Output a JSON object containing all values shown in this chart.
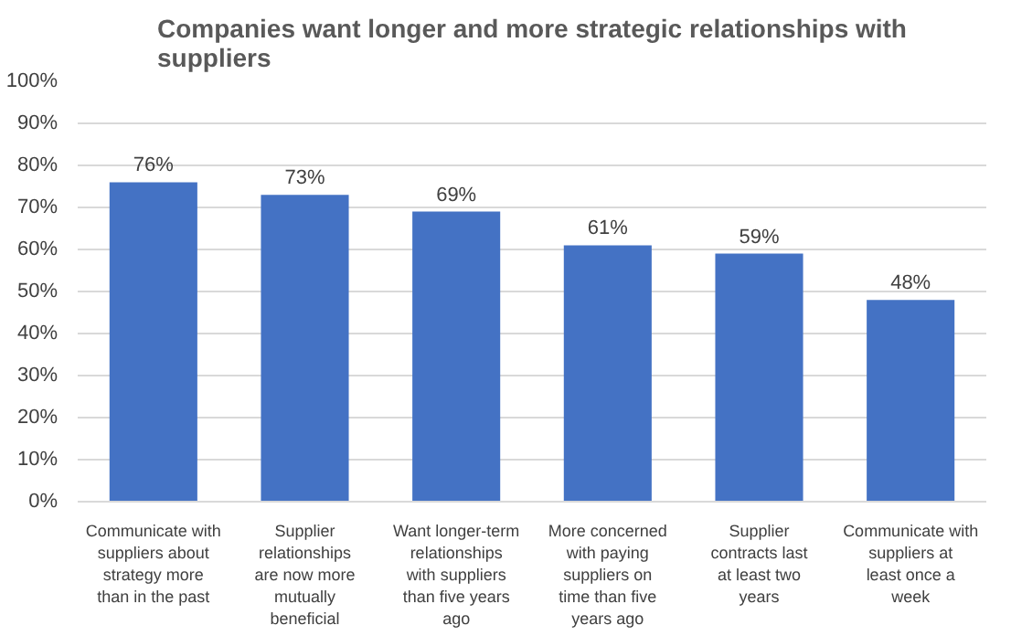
{
  "chart_data": {
    "type": "bar",
    "title": "Companies want longer and more strategic relationships with suppliers",
    "categories": [
      "Communicate with suppliers about strategy more than in the past",
      "Supplier relationships are now more mutually beneficial",
      "Want longer-term relationships with suppliers than five years ago",
      "More concerned with paying suppliers on time than five years ago",
      "Supplier contracts last at least two years",
      "Communicate with suppliers at least once a week"
    ],
    "values": [
      76,
      73,
      69,
      61,
      59,
      48
    ],
    "value_labels": [
      "76%",
      "73%",
      "69%",
      "61%",
      "59%",
      "48%"
    ],
    "color": "#4472c4",
    "ylim": [
      0,
      100
    ],
    "yticks": [
      {
        "value": 0,
        "label": "0%"
      },
      {
        "value": 10,
        "label": "10%"
      },
      {
        "value": 20,
        "label": "20%"
      },
      {
        "value": 30,
        "label": "30%"
      },
      {
        "value": 40,
        "label": "40%"
      },
      {
        "value": 50,
        "label": "50%"
      },
      {
        "value": 60,
        "label": "60%"
      },
      {
        "value": 70,
        "label": "70%"
      },
      {
        "value": 80,
        "label": "80%"
      },
      {
        "value": 90,
        "label": "90%"
      },
      {
        "value": 100,
        "label": "100%"
      }
    ],
    "grid": "y"
  }
}
